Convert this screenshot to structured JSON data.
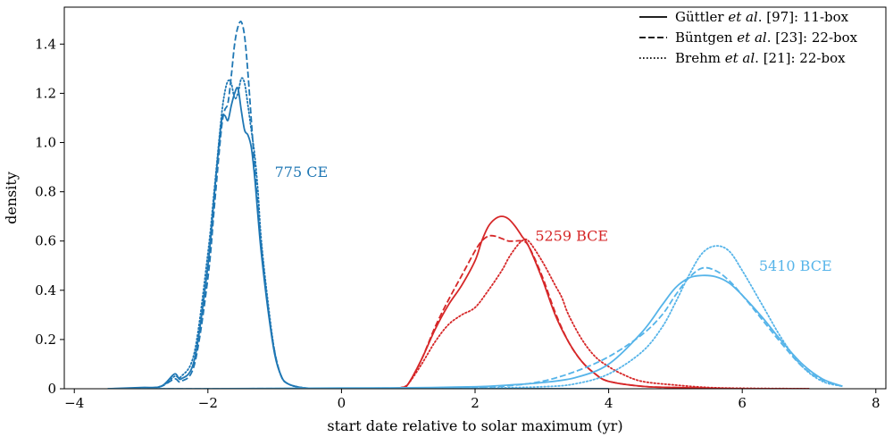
{
  "chart_data": {
    "type": "line",
    "xlabel": "start date relative to solar maximum (yr)",
    "ylabel": "density",
    "xlim": [
      -4.15,
      8.15
    ],
    "ylim": [
      0,
      1.55
    ],
    "xticks": [
      -4,
      -2,
      0,
      2,
      4,
      6,
      8
    ],
    "xtick_labels": [
      "−4",
      "−2",
      "0",
      "2",
      "4",
      "6",
      "8"
    ],
    "yticks": [
      0,
      0.2,
      0.4,
      0.6,
      0.8,
      1.0,
      1.2,
      1.4
    ],
    "ytick_labels": [
      "0",
      "0.2",
      "0.4",
      "0.6",
      "0.8",
      "1.0",
      "1.2",
      "1.4"
    ],
    "grid": false,
    "legend": {
      "placement": "top-right",
      "entries": [
        {
          "style": "solid",
          "author": "Güttler",
          "etal": "et al",
          "rest": ". [97]: 11-box"
        },
        {
          "style": "dashed",
          "author": "Büntgen",
          "etal": "et al",
          "rest": ". [23]: 22-box"
        },
        {
          "style": "dotted",
          "author": "Brehm",
          "etal": "et al",
          "rest": ". [21]: 22-box"
        }
      ]
    },
    "annotations": [
      {
        "text": "775 CE",
        "x": -1.0,
        "y": 0.86,
        "color": "#1f77b4"
      },
      {
        "text": "5259 BCE",
        "x": 2.9,
        "y": 0.6,
        "color": "#d62728"
      },
      {
        "text": "5410 BCE",
        "x": 6.25,
        "y": 0.48,
        "color": "#56b4e9"
      }
    ],
    "colors": {
      "775 CE": "#1f77b4",
      "5259 BCE": "#d62728",
      "5410 BCE": "#56b4e9"
    },
    "series": [
      {
        "event": "775 CE",
        "style": "solid",
        "color": "#1f77b4",
        "x": [
          -3.5,
          -3.0,
          -2.7,
          -2.5,
          -2.4,
          -2.2,
          -2.0,
          -1.9,
          -1.8,
          -1.75,
          -1.7,
          -1.65,
          -1.6,
          -1.55,
          -1.5,
          -1.45,
          -1.4,
          -1.35,
          -1.3,
          -1.25,
          -1.2,
          -1.1,
          -1.0,
          -0.9,
          -0.8,
          -0.6,
          -0.3,
          0.0,
          0.5,
          1.0,
          2.0,
          3.0,
          4.0
        ],
        "y": [
          0.0,
          0.005,
          0.01,
          0.06,
          0.04,
          0.12,
          0.5,
          0.8,
          1.08,
          1.11,
          1.09,
          1.15,
          1.2,
          1.22,
          1.13,
          1.05,
          1.03,
          0.98,
          0.86,
          0.7,
          0.55,
          0.32,
          0.14,
          0.05,
          0.02,
          0.005,
          0.0,
          0.0,
          0.0,
          0.0,
          0.0,
          0.0,
          0.0
        ]
      },
      {
        "event": "775 CE",
        "style": "dashed",
        "color": "#1f77b4",
        "x": [
          -3.0,
          -2.7,
          -2.5,
          -2.4,
          -2.2,
          -2.0,
          -1.9,
          -1.8,
          -1.75,
          -1.7,
          -1.65,
          -1.6,
          -1.55,
          -1.5,
          -1.45,
          -1.4,
          -1.35,
          -1.3,
          -1.25,
          -1.2,
          -1.1,
          -1.0,
          -0.9,
          -0.8,
          -0.6,
          -0.3
        ],
        "y": [
          0.0,
          0.01,
          0.04,
          0.03,
          0.1,
          0.45,
          0.75,
          1.05,
          1.13,
          1.16,
          1.27,
          1.4,
          1.47,
          1.49,
          1.43,
          1.28,
          1.09,
          0.9,
          0.73,
          0.58,
          0.33,
          0.15,
          0.05,
          0.02,
          0.005,
          0.0
        ]
      },
      {
        "event": "775 CE",
        "style": "dotted",
        "color": "#1f77b4",
        "x": [
          -3.0,
          -2.7,
          -2.5,
          -2.4,
          -2.2,
          -2.0,
          -1.9,
          -1.8,
          -1.75,
          -1.7,
          -1.65,
          -1.6,
          -1.55,
          -1.5,
          -1.45,
          -1.4,
          -1.35,
          -1.3,
          -1.25,
          -1.2,
          -1.1,
          -1.0,
          -0.9,
          -0.8,
          -0.6,
          -0.3
        ],
        "y": [
          0.0,
          0.01,
          0.05,
          0.05,
          0.15,
          0.55,
          0.82,
          1.1,
          1.2,
          1.25,
          1.24,
          1.18,
          1.2,
          1.26,
          1.24,
          1.15,
          1.05,
          0.95,
          0.8,
          0.6,
          0.35,
          0.15,
          0.05,
          0.02,
          0.005,
          0.0
        ]
      },
      {
        "event": "5259 BCE",
        "style": "solid",
        "color": "#d62728",
        "x": [
          0.0,
          0.5,
          0.9,
          1.0,
          1.2,
          1.4,
          1.6,
          1.8,
          2.0,
          2.1,
          2.2,
          2.3,
          2.4,
          2.5,
          2.6,
          2.7,
          2.8,
          3.0,
          3.2,
          3.4,
          3.6,
          3.8,
          4.0,
          4.5,
          5.0,
          6.0,
          7.0
        ],
        "y": [
          0.0,
          0.0,
          0.005,
          0.02,
          0.12,
          0.24,
          0.34,
          0.42,
          0.52,
          0.6,
          0.66,
          0.69,
          0.7,
          0.69,
          0.66,
          0.62,
          0.58,
          0.45,
          0.3,
          0.19,
          0.11,
          0.06,
          0.03,
          0.01,
          0.005,
          0.0,
          0.0
        ]
      },
      {
        "event": "5259 BCE",
        "style": "dashed",
        "color": "#d62728",
        "x": [
          0.9,
          1.0,
          1.2,
          1.4,
          1.6,
          1.8,
          2.0,
          2.1,
          2.2,
          2.3,
          2.4,
          2.5,
          2.6,
          2.7,
          2.8,
          3.0,
          3.2,
          3.4,
          3.6,
          3.8,
          4.0,
          4.5,
          5.0,
          6.0
        ],
        "y": [
          0.005,
          0.02,
          0.12,
          0.25,
          0.36,
          0.46,
          0.56,
          0.6,
          0.62,
          0.62,
          0.61,
          0.6,
          0.6,
          0.6,
          0.58,
          0.46,
          0.31,
          0.19,
          0.11,
          0.06,
          0.03,
          0.01,
          0.005,
          0.0
        ]
      },
      {
        "event": "5259 BCE",
        "style": "dotted",
        "color": "#d62728",
        "x": [
          0.9,
          1.0,
          1.2,
          1.4,
          1.6,
          1.8,
          2.0,
          2.2,
          2.4,
          2.5,
          2.6,
          2.7,
          2.8,
          3.0,
          3.2,
          3.3,
          3.4,
          3.6,
          3.8,
          4.0,
          4.2,
          4.5,
          5.0,
          5.5,
          6.0,
          7.0
        ],
        "y": [
          0.005,
          0.02,
          0.1,
          0.19,
          0.26,
          0.3,
          0.33,
          0.4,
          0.48,
          0.53,
          0.57,
          0.6,
          0.6,
          0.52,
          0.42,
          0.37,
          0.3,
          0.2,
          0.13,
          0.09,
          0.06,
          0.03,
          0.015,
          0.005,
          0.002,
          0.0
        ]
      },
      {
        "event": "5410 BCE",
        "style": "solid",
        "color": "#56b4e9",
        "x": [
          -3.5,
          -2.0,
          0.0,
          1.0,
          2.0,
          2.5,
          3.0,
          3.5,
          4.0,
          4.5,
          4.8,
          5.0,
          5.2,
          5.4,
          5.6,
          5.8,
          6.0,
          6.3,
          6.6,
          6.9,
          7.2,
          7.5
        ],
        "y": [
          0.0,
          0.0,
          0.003,
          0.004,
          0.008,
          0.015,
          0.025,
          0.045,
          0.1,
          0.23,
          0.34,
          0.41,
          0.45,
          0.46,
          0.455,
          0.43,
          0.38,
          0.29,
          0.19,
          0.1,
          0.04,
          0.01
        ]
      },
      {
        "event": "5410 BCE",
        "style": "dashed",
        "color": "#56b4e9",
        "x": [
          -3.0,
          -2.0,
          0.0,
          1.0,
          2.0,
          2.5,
          3.0,
          3.5,
          4.0,
          4.5,
          4.8,
          5.0,
          5.2,
          5.4,
          5.6,
          5.8,
          6.0,
          6.3,
          6.6,
          6.9,
          7.2,
          7.5
        ],
        "y": [
          0.0,
          0.0,
          0.002,
          0.003,
          0.006,
          0.012,
          0.03,
          0.07,
          0.13,
          0.22,
          0.3,
          0.38,
          0.45,
          0.49,
          0.48,
          0.44,
          0.38,
          0.28,
          0.18,
          0.09,
          0.035,
          0.01
        ]
      },
      {
        "event": "5410 BCE",
        "style": "dotted",
        "color": "#56b4e9",
        "x": [
          1.0,
          2.0,
          3.0,
          3.5,
          4.0,
          4.5,
          4.8,
          5.0,
          5.2,
          5.4,
          5.6,
          5.8,
          6.0,
          6.3,
          6.6,
          6.9,
          7.2,
          7.5
        ],
        "y": [
          0.0,
          0.002,
          0.008,
          0.02,
          0.06,
          0.15,
          0.25,
          0.35,
          0.46,
          0.55,
          0.58,
          0.56,
          0.48,
          0.34,
          0.2,
          0.09,
          0.03,
          0.01
        ]
      }
    ]
  }
}
